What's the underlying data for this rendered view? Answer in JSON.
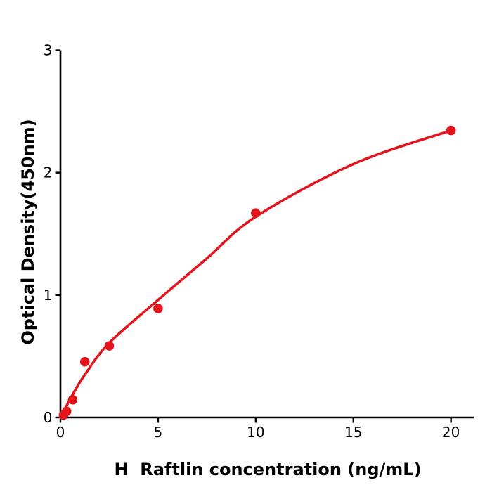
{
  "page": {
    "background": "#ffffff"
  },
  "chart_data": {
    "type": "scatter",
    "title": "",
    "xlabel": "H  Raftlin concentration (ng/mL)",
    "ylabel": "Optical Density(450nm)",
    "x_ticks": [
      0,
      5,
      10,
      15,
      20
    ],
    "y_ticks": [
      0,
      1,
      2,
      3
    ],
    "xlim": [
      0,
      21.2
    ],
    "ylim": [
      0,
      3
    ],
    "grid": false,
    "legend": "none",
    "axis_color": "#000000",
    "tick_label_color": "#000000",
    "tick_label_size": 20,
    "point_color": "#e2151d",
    "line_color": "#e2151d",
    "marker_radius": 6.8,
    "line_width": 3.6,
    "points": [
      [
        0.156,
        0.02
      ],
      [
        0.313,
        0.05
      ],
      [
        0.625,
        0.145
      ],
      [
        1.25,
        0.455
      ],
      [
        2.5,
        0.585
      ],
      [
        5,
        0.89
      ],
      [
        10,
        1.67
      ],
      [
        20,
        2.345
      ]
    ],
    "fit_curve": [
      [
        0,
        0.0
      ],
      [
        0.6,
        0.18
      ],
      [
        1.25,
        0.35
      ],
      [
        2.5,
        0.61
      ],
      [
        5,
        0.96
      ],
      [
        7.5,
        1.3
      ],
      [
        10,
        1.64
      ],
      [
        15,
        2.07
      ],
      [
        20,
        2.345
      ]
    ]
  }
}
